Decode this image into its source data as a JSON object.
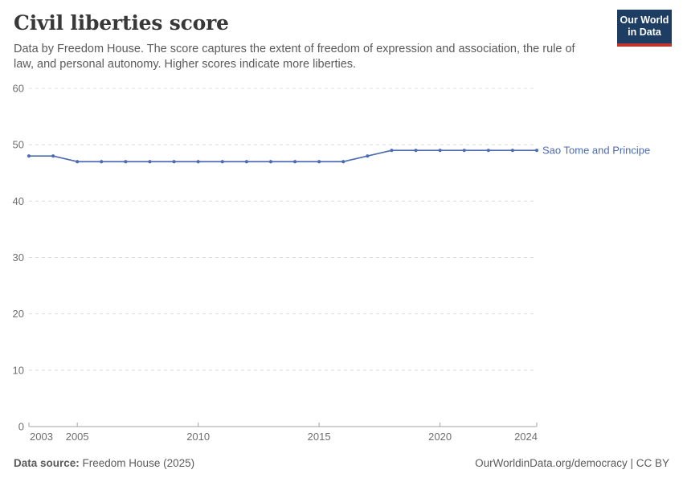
{
  "header": {
    "title": "Civil liberties score",
    "subtitle": "Data by Freedom House. The score captures the extent of freedom of expression and association, the rule of law, and personal autonomy. Higher scores indicate more liberties.",
    "logo": {
      "line1": "Our World",
      "line2": "in Data"
    }
  },
  "footer": {
    "source_label": "Data source:",
    "source_value": " Freedom House (2025)",
    "attribution_link": "OurWorldinData.org/democracy",
    "attribution_sep": " | ",
    "license": "CC BY"
  },
  "chart_data": {
    "type": "line",
    "title": "Civil liberties score",
    "x": [
      2003,
      2004,
      2005,
      2006,
      2007,
      2008,
      2009,
      2010,
      2011,
      2012,
      2013,
      2014,
      2015,
      2016,
      2017,
      2018,
      2019,
      2020,
      2021,
      2022,
      2023,
      2024
    ],
    "series": [
      {
        "name": "Sao Tome and Principe",
        "color": "#4c6bb0",
        "values": [
          48,
          48,
          47,
          47,
          47,
          47,
          47,
          47,
          47,
          47,
          47,
          47,
          47,
          47,
          48,
          49,
          49,
          49,
          49,
          49,
          49,
          49
        ]
      }
    ],
    "xlim": [
      2003,
      2024
    ],
    "ylim": [
      0,
      60
    ],
    "xticks": [
      2003,
      2005,
      2010,
      2015,
      2020,
      2024
    ],
    "yticks": [
      0,
      10,
      20,
      30,
      40,
      50,
      60
    ],
    "grid": "horizontal-dashed",
    "legend_position": "right-of-line-end"
  }
}
